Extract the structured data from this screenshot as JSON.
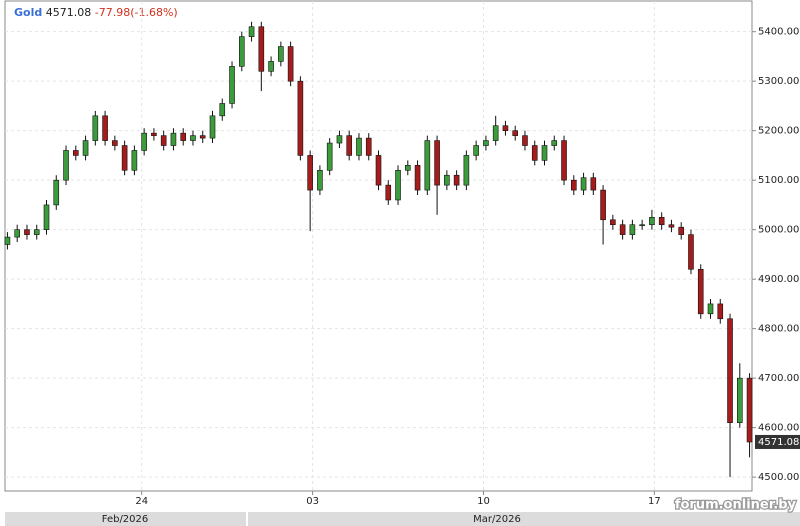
{
  "chart_data": {
    "type": "candlestick",
    "name": "Gold",
    "last_price": 4571.08,
    "change": -77.98,
    "change_percent": {
      "value": -1.68,
      "label": "(-1.68%)"
    },
    "watermark": "forum.onliner.by",
    "month_labels": [
      "Feb/2026",
      "Mar/2026"
    ],
    "up_color": "#3c9b3c",
    "down_color": "#a51c1c",
    "grid": true,
    "xlim": [
      18.4,
      49.0
    ],
    "xticks": [
      {
        "value": 24,
        "label": "24"
      },
      {
        "value": 31,
        "label": "03"
      },
      {
        "value": 38,
        "label": "10"
      },
      {
        "value": 45,
        "label": "17"
      }
    ],
    "ylim": [
      4472,
      5462
    ],
    "yticks": [
      {
        "value": 4500,
        "label": "4500.00"
      },
      {
        "value": 4600,
        "label": "4600.00"
      },
      {
        "value": 4700,
        "label": "4700.00"
      },
      {
        "value": 4800,
        "label": "4800.00"
      },
      {
        "value": 4900,
        "label": "4900.00"
      },
      {
        "value": 5000,
        "label": "5000.00"
      },
      {
        "value": 5100,
        "label": "5100.00"
      },
      {
        "value": 5200,
        "label": "5200.00"
      },
      {
        "value": 5300,
        "label": "5300.00"
      },
      {
        "value": 5400,
        "label": "5400.00"
      }
    ],
    "x": [
      18.5,
      18.9,
      19.3,
      19.7,
      20.1,
      20.5,
      20.9,
      21.3,
      21.7,
      22.1,
      22.5,
      22.9,
      23.3,
      23.7,
      24.1,
      24.5,
      24.9,
      25.3,
      25.7,
      26.1,
      26.5,
      26.9,
      27.3,
      27.7,
      28.1,
      28.5,
      28.9,
      29.3,
      29.7,
      30.1,
      30.5,
      30.9,
      31.3,
      31.7,
      32.1,
      32.5,
      32.9,
      33.3,
      33.7,
      34.1,
      34.5,
      34.9,
      35.3,
      35.7,
      36.1,
      36.5,
      36.9,
      37.3,
      37.7,
      38.1,
      38.5,
      38.9,
      39.3,
      39.7,
      40.1,
      40.5,
      40.9,
      41.3,
      41.7,
      42.1,
      42.5,
      42.9,
      43.3,
      43.7,
      44.1,
      44.5,
      44.9,
      45.3,
      45.7,
      46.1,
      46.5,
      46.9,
      47.3,
      47.7,
      48.1,
      48.5,
      48.9
    ],
    "open": [
      4970,
      4985,
      5000,
      4990,
      5000,
      5050,
      5100,
      5160,
      5150,
      5180,
      5230,
      5180,
      5170,
      5120,
      5160,
      5195,
      5190,
      5170,
      5195,
      5180,
      5190,
      5185,
      5230,
      5255,
      5330,
      5390,
      5410,
      5320,
      5340,
      5370,
      5300,
      5150,
      5080,
      5120,
      5175,
      5190,
      5150,
      5185,
      5150,
      5090,
      5060,
      5120,
      5130,
      5080,
      5180,
      5090,
      5110,
      5090,
      5150,
      5170,
      5180,
      5210,
      5200,
      5190,
      5170,
      5140,
      5170,
      5180,
      5100,
      5080,
      5105,
      5080,
      5020,
      5010,
      4990,
      5010,
      5010,
      5025,
      5010,
      5005,
      4990,
      4920,
      4830,
      4850,
      4820,
      4610,
      4700
    ],
    "high": [
      4995,
      5010,
      5010,
      5010,
      5060,
      5110,
      5170,
      5170,
      5190,
      5240,
      5240,
      5190,
      5180,
      5170,
      5205,
      5205,
      5200,
      5205,
      5205,
      5200,
      5200,
      5240,
      5265,
      5340,
      5400,
      5420,
      5420,
      5350,
      5380,
      5380,
      5310,
      5160,
      5130,
      5185,
      5200,
      5200,
      5195,
      5195,
      5160,
      5100,
      5130,
      5140,
      5140,
      5190,
      5190,
      5120,
      5120,
      5160,
      5180,
      5190,
      5230,
      5220,
      5210,
      5200,
      5180,
      5180,
      5190,
      5190,
      5110,
      5115,
      5115,
      5090,
      5030,
      5020,
      5020,
      5020,
      5040,
      5035,
      5020,
      5015,
      5000,
      4930,
      4860,
      4860,
      4830,
      4730,
      4710
    ],
    "low": [
      4960,
      4975,
      4980,
      4980,
      4990,
      5040,
      5090,
      5140,
      5140,
      5170,
      5170,
      5160,
      5110,
      5110,
      5150,
      5180,
      5160,
      5160,
      5170,
      5170,
      5175,
      5175,
      5220,
      5245,
      5320,
      5380,
      5280,
      5310,
      5330,
      5290,
      5140,
      4997,
      5070,
      5110,
      5165,
      5140,
      5140,
      5140,
      5080,
      5050,
      5050,
      5110,
      5070,
      5070,
      5030,
      5080,
      5080,
      5080,
      5140,
      5160,
      5170,
      5190,
      5180,
      5160,
      5130,
      5130,
      5160,
      5090,
      5070,
      5070,
      5070,
      4970,
      5000,
      4980,
      4980,
      5000,
      5000,
      5000,
      4995,
      4980,
      4910,
      4820,
      4820,
      4810,
      4500,
      4600,
      4540
    ],
    "close": [
      4985,
      5000,
      4990,
      5000,
      5050,
      5100,
      5160,
      5150,
      5180,
      5230,
      5180,
      5170,
      5120,
      5160,
      5195,
      5190,
      5170,
      5195,
      5180,
      5190,
      5185,
      5230,
      5255,
      5330,
      5390,
      5410,
      5320,
      5340,
      5370,
      5300,
      5150,
      5080,
      5120,
      5175,
      5190,
      5150,
      5185,
      5150,
      5090,
      5060,
      5120,
      5130,
      5080,
      5180,
      5090,
      5110,
      5090,
      5150,
      5170,
      5180,
      5210,
      5200,
      5190,
      5170,
      5140,
      5170,
      5180,
      5100,
      5080,
      5105,
      5080,
      5020,
      5010,
      4990,
      5010,
      5010,
      5025,
      5010,
      5005,
      4990,
      4920,
      4830,
      4850,
      4820,
      4610,
      4700,
      4571
    ]
  }
}
